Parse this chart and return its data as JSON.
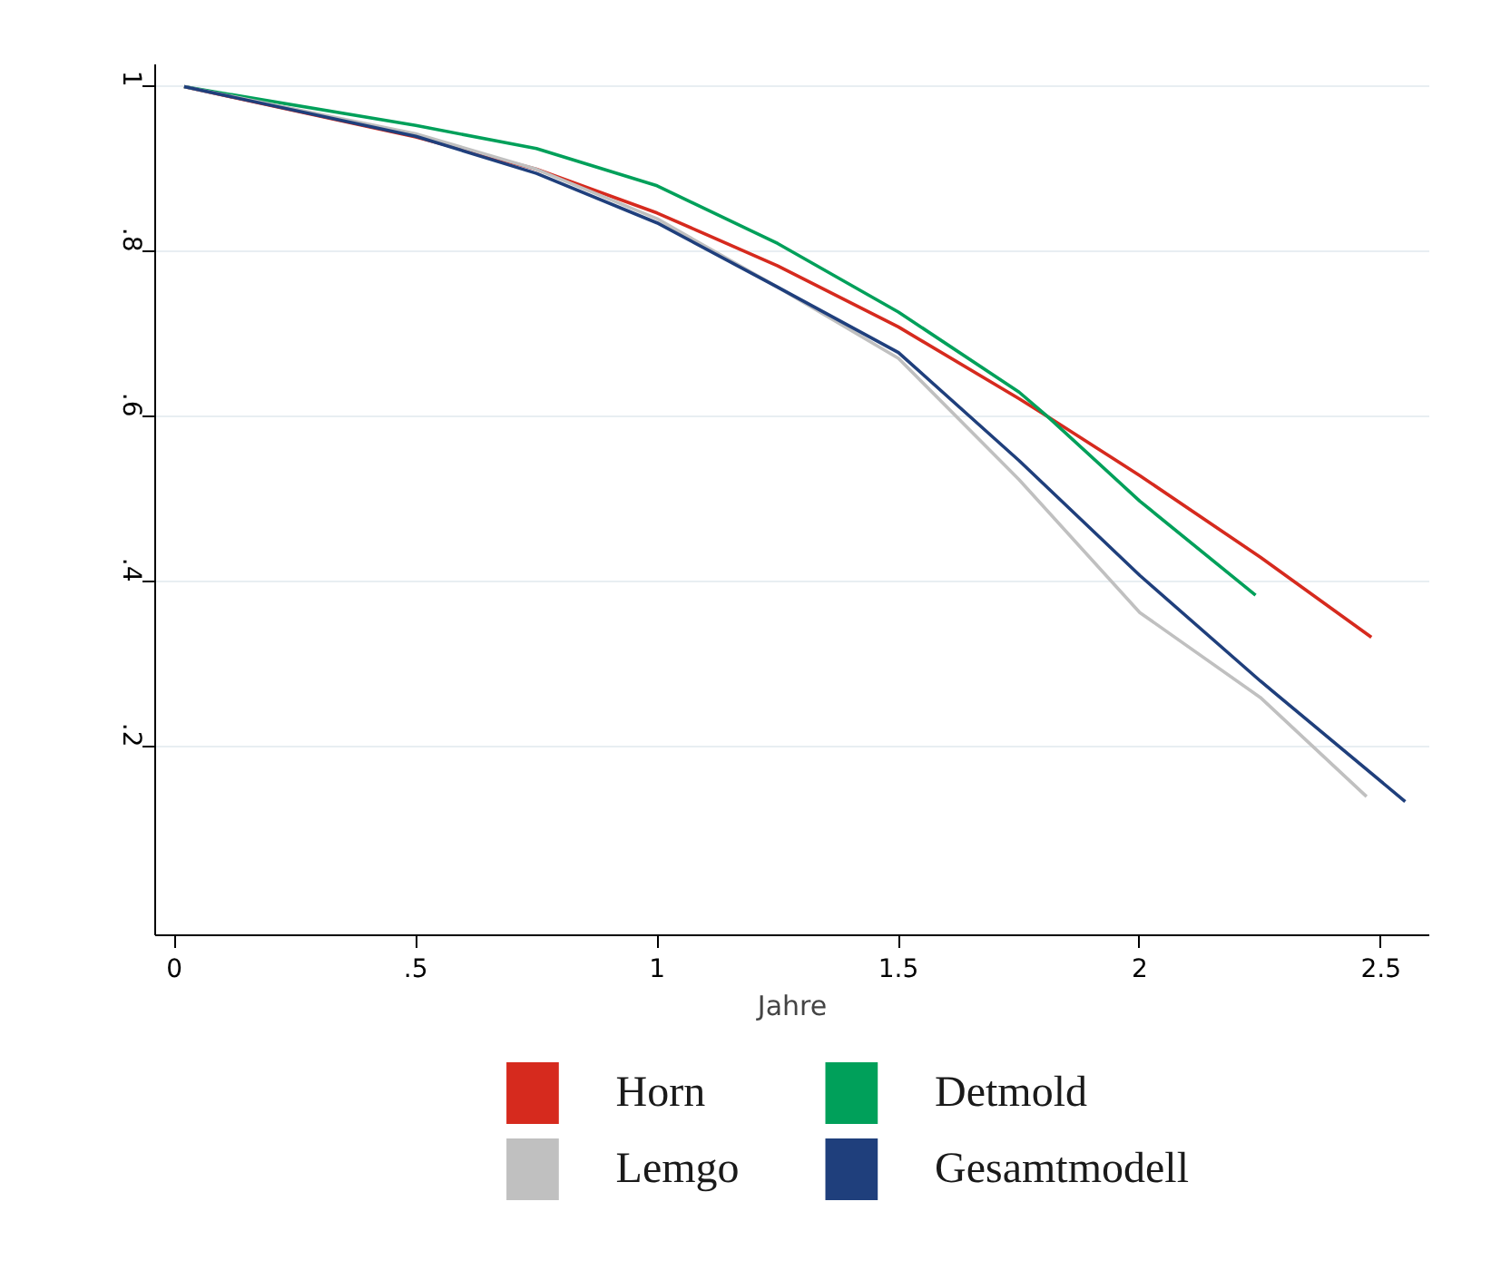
{
  "chart_data": {
    "type": "line",
    "xlabel": "Jahre",
    "xlim": [
      -0.04,
      2.6
    ],
    "ylim": [
      -0.028,
      1.027
    ],
    "xticks": [
      0,
      {
        "value": 0.5,
        "label": ".5"
      },
      1,
      1.5,
      2,
      2.5
    ],
    "yticks": [
      {
        "value": 0.2,
        "label": ".2"
      },
      {
        "value": 0.4,
        "label": ".4"
      },
      {
        "value": 0.6,
        "label": ".6"
      },
      {
        "value": 0.8,
        "label": ".8"
      },
      1
    ],
    "grid": "y",
    "legend": "bottom",
    "marker": "none",
    "line_style": "solid",
    "series": [
      {
        "name": "Horn",
        "color": "#d62a1e",
        "x": [
          0.02,
          0.5,
          0.75,
          1,
          1.25,
          1.5,
          1.75,
          1.81,
          2,
          2.25,
          2.48
        ],
        "values": [
          1,
          0.939,
          0.9,
          0.847,
          0.783,
          0.709,
          0.622,
          0.6,
          0.529,
          0.43,
          0.333
        ]
      },
      {
        "name": "Detmold",
        "color": "#00a05a",
        "x": [
          0.02,
          0.5,
          0.75,
          1,
          1.25,
          1.5,
          1.75,
          1.81,
          2,
          2.24
        ],
        "values": [
          1,
          0.953,
          0.925,
          0.88,
          0.81,
          0.727,
          0.63,
          0.6,
          0.498,
          0.384
        ]
      },
      {
        "name": "Lemgo",
        "color": "#c0c0c0",
        "x": [
          0.02,
          0.5,
          0.75,
          1,
          1.25,
          1.5,
          1.75,
          2,
          2.25,
          2.47
        ],
        "values": [
          1,
          0.943,
          0.9,
          0.84,
          0.757,
          0.671,
          0.524,
          0.363,
          0.26,
          0.14
        ]
      },
      {
        "name": "Gesamtmodell",
        "color": "#1f3f7c",
        "x": [
          0.02,
          0.5,
          0.75,
          1,
          1.25,
          1.5,
          1.75,
          2,
          2.25,
          2.55
        ],
        "values": [
          1,
          0.94,
          0.895,
          0.835,
          0.757,
          0.678,
          0.547,
          0.408,
          0.28,
          0.134
        ]
      }
    ]
  }
}
